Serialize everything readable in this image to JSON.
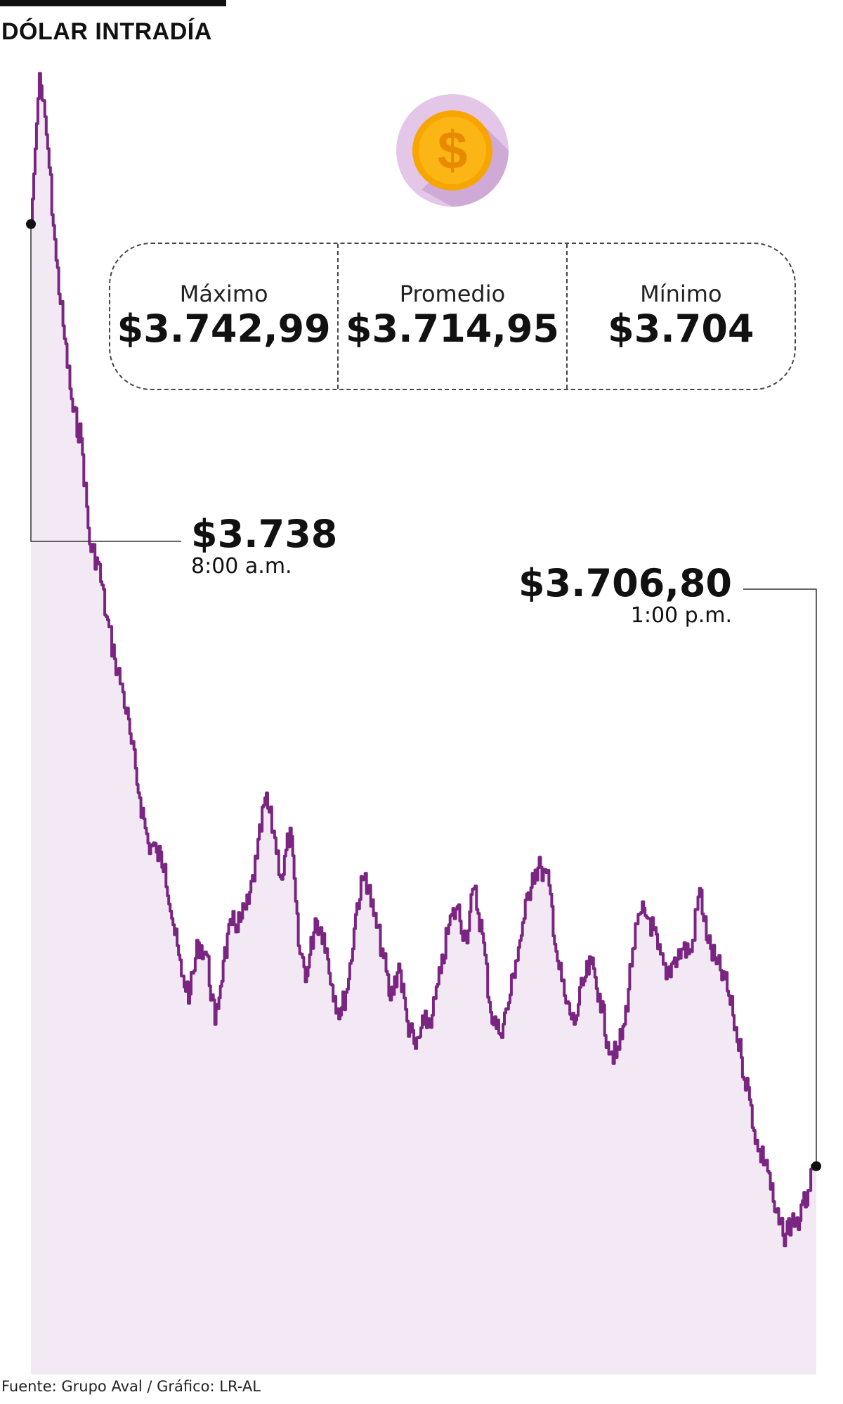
{
  "title": "DÓLAR INTRADÍA",
  "icon": "dollar-coin-icon",
  "colors": {
    "line": "#7b2583",
    "area": "#f3e9f4",
    "coin": "#f7a600",
    "coin_bg": "#e3c6e8",
    "coin_shadow": "#c9a3d1"
  },
  "stats": [
    {
      "label": "Máximo",
      "value": "$3.742,99"
    },
    {
      "label": "Promedio",
      "value": "$3.714,95"
    },
    {
      "label": "Mínimo",
      "value": "$3.704"
    }
  ],
  "annotations": {
    "start": {
      "value": "$3.738",
      "time": "8:00 a.m."
    },
    "end": {
      "value": "$3.706,80",
      "time": "1:00 p.m."
    }
  },
  "footer": "Fuente: Grupo Aval / Gráfico: LR-AL",
  "chart_data": {
    "type": "area",
    "title": "DÓLAR INTRADÍA",
    "xlabel": "",
    "ylabel": "",
    "x_range": [
      "8:00 a.m.",
      "1:00 p.m."
    ],
    "ylim": [
      3704,
      3743
    ],
    "grid": false,
    "series": [
      {
        "values": [
          3738.0,
          3742.99,
          3740.5,
          3736.8,
          3734.2,
          3731.8,
          3730.9,
          3727.4,
          3726.8,
          3725.0,
          3723.6,
          3722.5,
          3720.8,
          3719.0,
          3717.5,
          3717.2,
          3716.8,
          3714.8,
          3713.1,
          3712.5,
          3714.2,
          3713.8,
          3711.5,
          3713.6,
          3714.8,
          3714.9,
          3715.5,
          3717.0,
          3719.0,
          3717.9,
          3716.3,
          3718.0,
          3714.1,
          3713.1,
          3715.0,
          3714.5,
          3712.8,
          3711.8,
          3713.0,
          3715.5,
          3716.5,
          3715.1,
          3714.0,
          3712.3,
          3713.5,
          3711.6,
          3710.7,
          3711.5,
          3711.8,
          3713.2,
          3714.8,
          3715.4,
          3714.3,
          3716.0,
          3714.5,
          3711.9,
          3711.2,
          3712.0,
          3713.6,
          3715.0,
          3716.5,
          3716.7,
          3716.1,
          3713.6,
          3712.2,
          3711.5,
          3712.8,
          3713.5,
          3712.5,
          3710.9,
          3710.4,
          3711.5,
          3714.0,
          3715.2,
          3715.0,
          3714.0,
          3713.0,
          3713.7,
          3714.0,
          3713.9,
          3716.0,
          3714.2,
          3713.5,
          3713.0,
          3711.8,
          3710.4,
          3709.0,
          3707.3,
          3707.0,
          3705.3,
          3704.5,
          3705.0,
          3705.0,
          3706.0,
          3706.8
        ]
      }
    ]
  }
}
